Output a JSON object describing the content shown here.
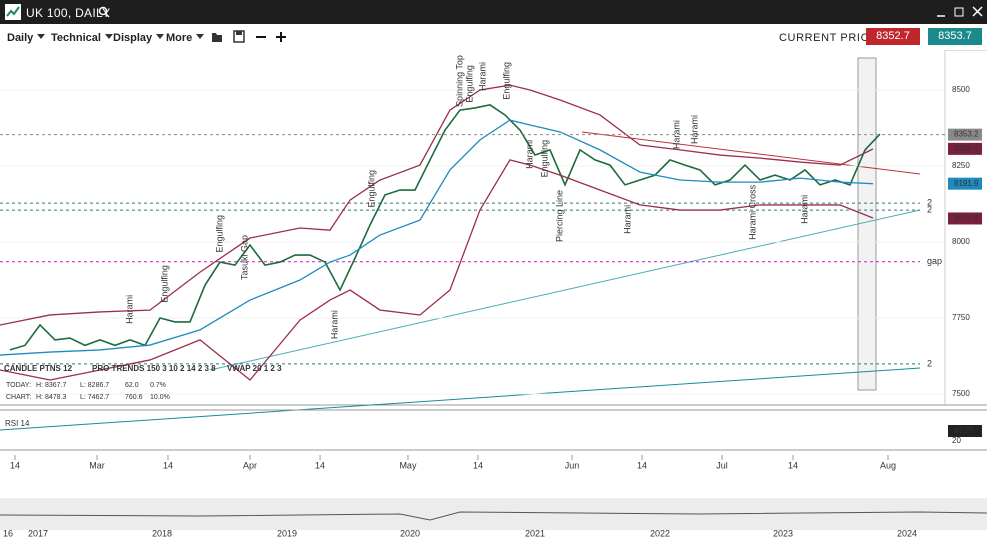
{
  "header": {
    "title": "UK 100, DAILY"
  },
  "toolbar": {
    "menus": [
      "Daily",
      "Technical",
      "Display",
      "More"
    ],
    "current_price_label": "CURRENT PRICE:",
    "bid": "8352.7",
    "ask": "8353.7"
  },
  "chart_data": {
    "type": "line",
    "series": [
      {
        "name": "Close",
        "color": "#1d6b3c",
        "x": [
          0,
          1,
          2,
          3,
          4,
          5,
          6,
          7,
          8,
          9,
          10,
          11,
          12,
          13,
          14,
          15,
          16,
          17,
          18,
          19,
          20,
          21,
          22,
          23,
          24,
          25,
          26,
          27,
          28,
          29,
          30,
          31,
          32,
          33,
          34,
          35,
          36,
          37,
          38,
          39,
          40,
          41,
          42,
          43,
          44,
          45,
          46,
          47,
          48,
          49,
          50,
          51,
          52,
          53,
          54,
          55,
          56,
          57,
          58
        ],
        "values": [
          7645,
          7660,
          7727,
          7678,
          7684,
          7660,
          7678,
          7660,
          7678,
          7660,
          7750,
          7737,
          7737,
          7858,
          7934,
          7924,
          7990,
          7924,
          7934,
          7957,
          7957,
          7934,
          7842,
          7947,
          8056,
          8155,
          8171,
          8171,
          8270,
          8368,
          8434,
          8441,
          8451,
          8418,
          8368,
          8286,
          8303,
          8188,
          8303,
          8270,
          8253,
          8188,
          8204,
          8220,
          8270,
          8253,
          8237,
          8188,
          8204,
          8253,
          8204,
          8220,
          8204,
          8237,
          8188,
          8204,
          8188,
          8303,
          8355
        ]
      },
      {
        "name": "MA",
        "color": "#1f8ac0",
        "x": [
          -0.67,
          2.67,
          6,
          9.33,
          12.67,
          16,
          19.33,
          21.33,
          22.67,
          24.67,
          27.33,
          29.33,
          31.33,
          33.33,
          34.67,
          36.67,
          39.33,
          42,
          44.67,
          47.33,
          50,
          52.67,
          55.33,
          57.53
        ],
        "values": [
          7628,
          7638,
          7645,
          7661,
          7711,
          7809,
          7875,
          7934,
          7957,
          8023,
          8072,
          8237,
          8336,
          8401,
          8385,
          8362,
          8303,
          8230,
          8204,
          8197,
          8197,
          8210,
          8197,
          8191.9
        ]
      },
      {
        "name": "Upper",
        "color": "#9b2d4f",
        "x": [
          -0.67,
          2.67,
          6,
          9.33,
          12.67,
          16,
          19.33,
          21.33,
          22.67,
          24.67,
          27.33,
          29.33,
          31.33,
          33.33,
          34.67,
          36.67,
          39.33,
          42,
          44.67,
          47.33,
          50,
          52.67,
          55.33,
          57.53
        ],
        "values": [
          7727,
          7760,
          7770,
          7776,
          7901,
          8013,
          8046,
          8039,
          8138,
          8204,
          8253,
          8434,
          8500,
          8516,
          8500,
          8467,
          8418,
          8319,
          8303,
          8286,
          8276,
          8263,
          8253,
          8306
        ]
      },
      {
        "name": "Lower",
        "color": "#9b2d4f",
        "x": [
          -0.67,
          2.67,
          6,
          9.33,
          12.67,
          16,
          19.33,
          21.33,
          22.67,
          24.67,
          27.33,
          29.33,
          31.33,
          33.33,
          34.67,
          36.67,
          39.33,
          42,
          44.67,
          47.33,
          50,
          52.67,
          55.33,
          57.53
        ],
        "values": [
          7579,
          7546,
          7579,
          7612,
          7678,
          7546,
          7743,
          7809,
          7842,
          7776,
          7760,
          7842,
          8105,
          8270,
          8253,
          8220,
          8171,
          8122,
          8105,
          8105,
          8122,
          8122,
          8122,
          8079
        ]
      }
    ],
    "xlim": [
      -0.667,
      62.333
    ],
    "ylim": [
      7463.8,
      8631.6
    ],
    "yticks": [
      7500,
      7750,
      8000,
      8250,
      8500
    ],
    "xticks": [
      {
        "value": 0.33,
        "label": "14"
      },
      {
        "value": 5.8,
        "label": "Mar"
      },
      {
        "value": 10.53,
        "label": "14"
      },
      {
        "value": 16,
        "label": "Apr"
      },
      {
        "value": 20.67,
        "label": "14"
      },
      {
        "value": 26.53,
        "label": "May"
      },
      {
        "value": 31.2,
        "label": "14"
      },
      {
        "value": 37.47,
        "label": "Jun"
      },
      {
        "value": 42.13,
        "label": "14"
      },
      {
        "value": 47.47,
        "label": "Jul"
      },
      {
        "value": 52.2,
        "label": "14"
      },
      {
        "value": 58.53,
        "label": "Aug"
      }
    ],
    "price_tags": [
      {
        "value": 8353.2,
        "color": "#8a8a8a"
      },
      {
        "value": 8306.4,
        "color": "#7a1f3d"
      },
      {
        "value": 8191.9,
        "color": "#1f8ac0"
      },
      {
        "value": 8077.4,
        "color": "#7a1f3d"
      }
    ],
    "levels": [
      {
        "value": 7935,
        "label": "gap",
        "color": "#c020c0"
      },
      {
        "value": 8128,
        "label": "2",
        "color": "#2a7a7a"
      },
      {
        "value": 8105,
        "label": "2",
        "color": "#2a7a7a"
      },
      {
        "value": 7599,
        "label": "2",
        "color": "#2a7a7a"
      }
    ],
    "annotations": [
      {
        "text": "Harami",
        "x": 8,
        "y": 7826
      },
      {
        "text": "Engulfing",
        "x": 10.33,
        "y": 7924
      },
      {
        "text": "Engulfing",
        "x": 14,
        "y": 8089
      },
      {
        "text": "Tasuki Gap",
        "x": 15.67,
        "y": 8023
      },
      {
        "text": "Engulfing",
        "x": 24.13,
        "y": 8237
      },
      {
        "text": "Harami",
        "x": 21.67,
        "y": 7776
      },
      {
        "text": "Spinning Top",
        "x": 30,
        "y": 8615
      },
      {
        "text": "Engulfing",
        "x": 30.67,
        "y": 8582
      },
      {
        "text": "Harami",
        "x": 31.53,
        "y": 8592
      },
      {
        "text": "Engulfing",
        "x": 33.13,
        "y": 8592
      },
      {
        "text": "Harami",
        "x": 34.67,
        "y": 8336
      },
      {
        "text": "Engulfing",
        "x": 35.67,
        "y": 8336
      },
      {
        "text": "Piercing Line",
        "x": 36.67,
        "y": 8171
      },
      {
        "text": "Harami",
        "x": 41.2,
        "y": 8122
      },
      {
        "text": "Harami",
        "x": 44.47,
        "y": 8401
      },
      {
        "text": "Harami",
        "x": 45.67,
        "y": 8418
      },
      {
        "text": "Harami Cross",
        "x": 49.53,
        "y": 8188
      },
      {
        "text": "Harami",
        "x": 53,
        "y": 8155
      }
    ]
  },
  "indicators": {
    "items": [
      "CANDLE PTNS 12",
      "PRO TRENDS 150 3 10 2 14 2 3 8",
      "VWAP 20 1 2 3"
    ],
    "today": [
      "TODAY:",
      "H: 8367.7",
      "L: 8286.7",
      "62.0",
      "0.7%"
    ],
    "chart": [
      "CHART:",
      "H: 8478.3",
      "L: 7462.7",
      "760.6",
      "10.0%"
    ]
  },
  "rsi": {
    "label": "RSI 14",
    "value": "63.75",
    "tick": "20"
  },
  "navigator": {
    "labels": [
      "16",
      "2017",
      "2018",
      "2019",
      "2020",
      "2021",
      "2022",
      "2023",
      "2024"
    ]
  }
}
